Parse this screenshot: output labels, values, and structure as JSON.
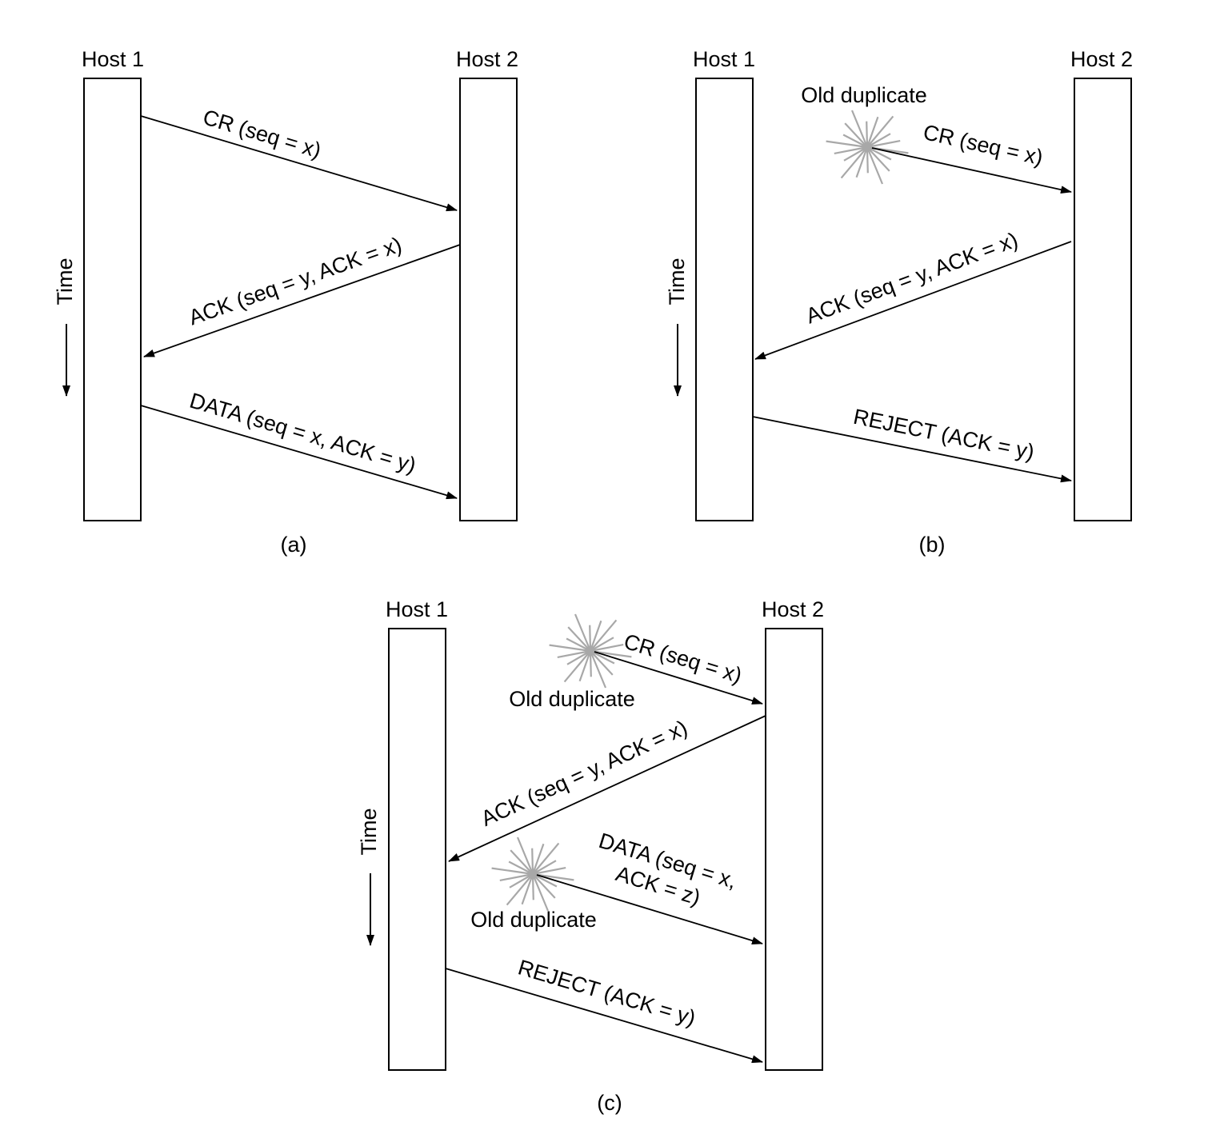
{
  "panels": {
    "a": {
      "caption": "(a)",
      "host1": "Host 1",
      "host2": "Host 2",
      "time": "Time",
      "messages": {
        "cr": "CR (seq = x)",
        "ack": "ACK (seq = y, ACK = x)",
        "data": "DATA (seq = x, ACK = y)"
      }
    },
    "b": {
      "caption": "(b)",
      "host1": "Host 1",
      "host2": "Host 2",
      "time": "Time",
      "old_duplicate": "Old duplicate",
      "messages": {
        "cr": "CR (seq = x)",
        "ack": "ACK (seq = y, ACK = x)",
        "reject": "REJECT (ACK = y)"
      }
    },
    "c": {
      "caption": "(c)",
      "host1": "Host 1",
      "host2": "Host 2",
      "time": "Time",
      "old_duplicate_1": "Old duplicate",
      "old_duplicate_2": "Old duplicate",
      "messages": {
        "cr": "CR (seq = x)",
        "ack": "ACK (seq = y, ACK = x)",
        "data_line1": "DATA (seq = x,",
        "data_line2": "ACK = z)",
        "reject": "REJECT (ACK = y)"
      }
    }
  },
  "colors": {
    "line": "#000000",
    "burst": "#a8a8a8",
    "background": "#ffffff"
  }
}
